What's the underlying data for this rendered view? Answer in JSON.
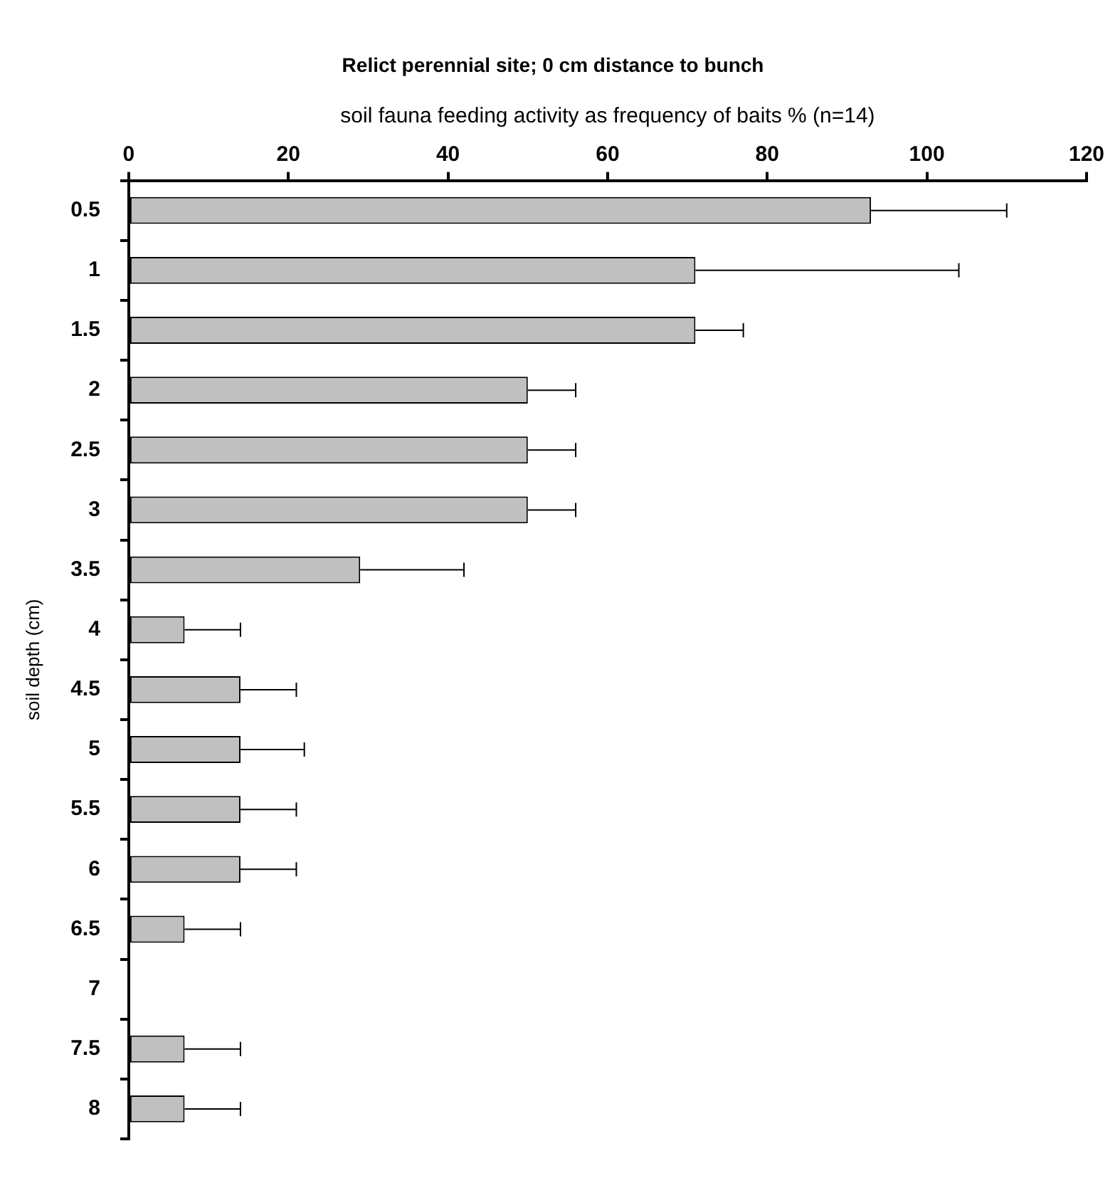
{
  "chart_data": {
    "type": "bar",
    "orientation": "horizontal",
    "title": "Relict perennial site; 0 cm distance to bunch",
    "xlabel": "soil fauna feeding activity as frequency of baits % (n=14)",
    "ylabel": "soil depth (cm)",
    "categories": [
      "0.5",
      "1",
      "1.5",
      "2",
      "2.5",
      "3",
      "3.5",
      "4",
      "4.5",
      "5",
      "5.5",
      "6",
      "6.5",
      "7",
      "7.5",
      "8"
    ],
    "values": [
      93,
      71,
      71,
      50,
      50,
      50,
      29,
      7,
      14,
      14,
      14,
      14,
      7,
      0,
      7,
      7
    ],
    "errors": [
      17,
      33,
      6,
      6,
      6,
      6,
      13,
      7,
      7,
      8,
      7,
      7,
      7,
      null,
      7,
      7
    ],
    "color": "#c0c0c0",
    "xlim": [
      0,
      120
    ],
    "xticks": [
      0,
      20,
      40,
      60,
      80,
      100,
      120
    ],
    "grid": false,
    "legend": false
  }
}
